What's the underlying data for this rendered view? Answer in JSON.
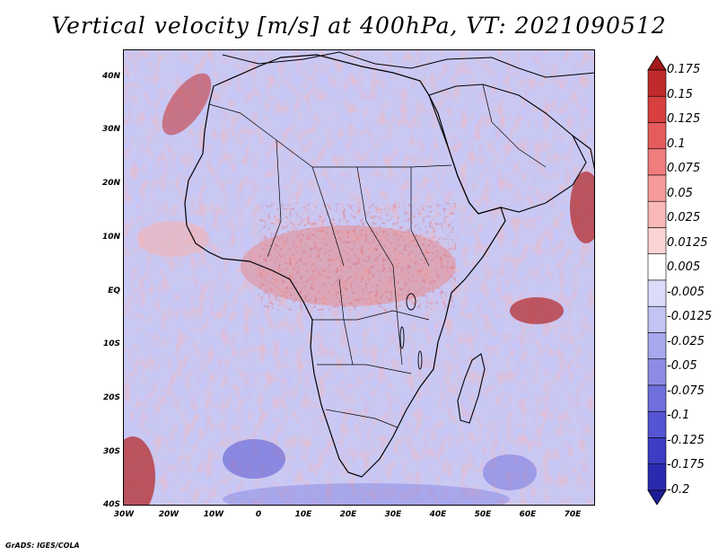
{
  "title": "Vertical velocity [m/s] at 400hPa, VT: 2021090512",
  "footer": "GrADS: IGES/COLA",
  "y_axis_labels": [
    "40N",
    "30N",
    "20N",
    "10N",
    "EQ",
    "10S",
    "20S",
    "30S",
    "40S"
  ],
  "x_axis_labels": [
    "30W",
    "20W",
    "10W",
    "0",
    "10E",
    "20E",
    "30E",
    "40E",
    "50E",
    "60E",
    "70E"
  ],
  "colorbar": {
    "labels": [
      "0.175",
      "0.15",
      "0.125",
      "0.1",
      "0.075",
      "0.05",
      "0.025",
      "0.0125",
      "0.005",
      "-0.005",
      "-0.0125",
      "-0.025",
      "-0.05",
      "-0.075",
      "-0.1",
      "-0.125",
      "-0.175",
      "-0.2"
    ],
    "colors": [
      "#a11a1a",
      "#c02a2a",
      "#d84040",
      "#e65c5c",
      "#f07c7c",
      "#f59a9a",
      "#f9b8b8",
      "#fcd4d4",
      "#ffffff",
      "#dcdcfa",
      "#c4c4f4",
      "#a8a8ee",
      "#8c8ce6",
      "#7070de",
      "#5454d4",
      "#3c3cc4",
      "#2a2ab0",
      "#1c1c96"
    ]
  },
  "map": {
    "region": "Africa and surrounding oceans",
    "lon_range": [
      -30,
      75
    ],
    "lat_range": [
      -40,
      45
    ],
    "field": "vertical velocity at 400hPa"
  }
}
